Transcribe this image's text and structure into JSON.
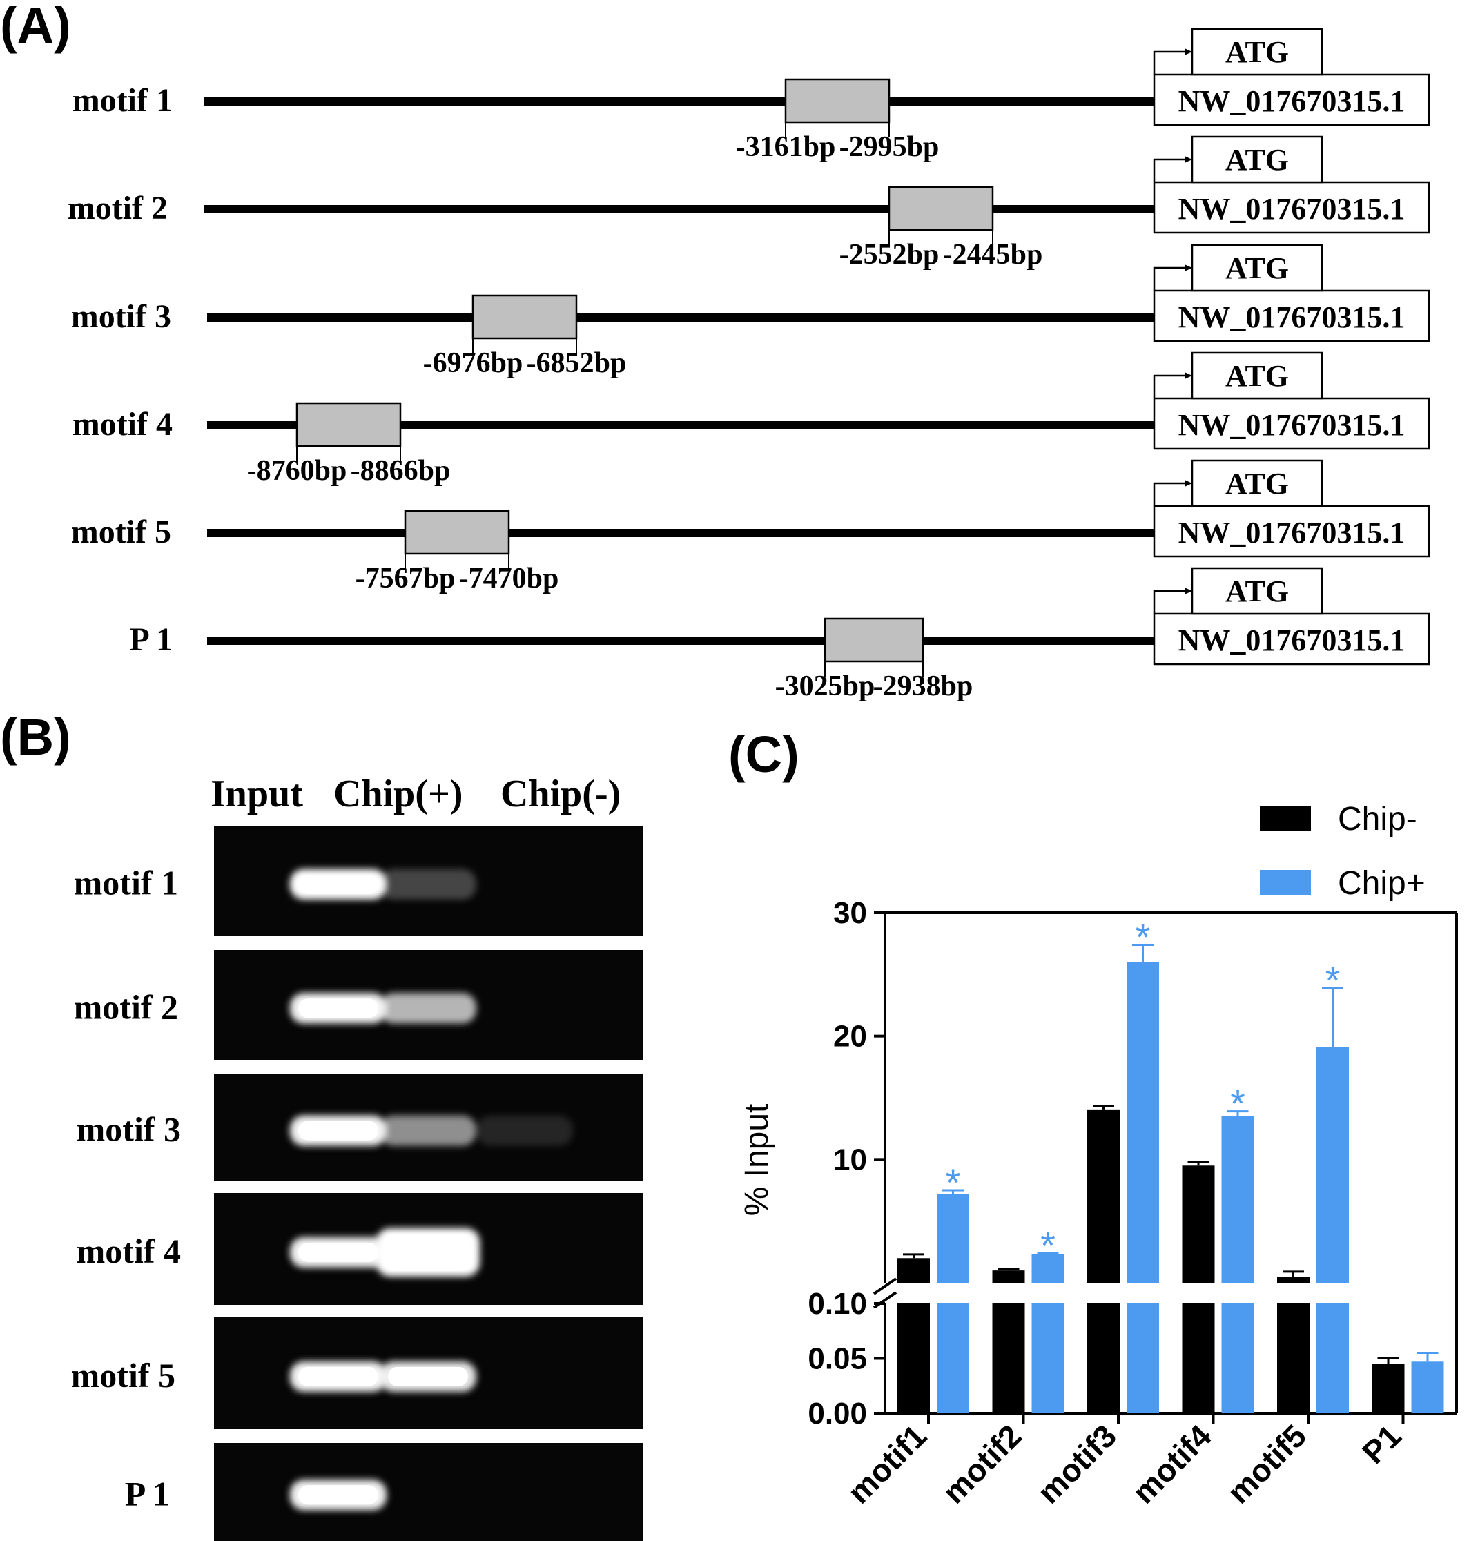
{
  "panel_labels": {
    "a": "(A)",
    "b": "(B)",
    "c": "(C)"
  },
  "panel_a": {
    "atg_label": "ATG",
    "gene_label": "NW_017670315.1",
    "rows": [
      {
        "name": "motif  1",
        "left_label": "-3161bp",
        "right_label": "-2995bp"
      },
      {
        "name": "motif  2",
        "left_label": "-2552bp",
        "right_label": "-2445bp"
      },
      {
        "name": "motif  3",
        "left_label": "-6976bp",
        "right_label": "-6852bp"
      },
      {
        "name": "motif  4",
        "left_label": "-8760bp",
        "right_label": "-8866bp"
      },
      {
        "name": "motif  5",
        "left_label": "-7567bp",
        "right_label": "-7470bp"
      },
      {
        "name": "P 1",
        "left_label": "-3025bp",
        "right_label": "-2938bp"
      }
    ]
  },
  "panel_b": {
    "lanes": [
      "Input",
      "Chip(+)",
      "Chip(-)"
    ],
    "rows": [
      "motif  1",
      "motif  2",
      "motif  3",
      "motif  4",
      "motif  5",
      "P 1"
    ],
    "band_intensity": [
      [
        1.0,
        0.25,
        0.0
      ],
      [
        0.95,
        0.7,
        0.0
      ],
      [
        0.95,
        0.55,
        0.12
      ],
      [
        0.95,
        1.0,
        0.0
      ],
      [
        0.95,
        0.9,
        0.0
      ],
      [
        0.95,
        0.0,
        0.0
      ]
    ],
    "colors": {
      "gel_bg": "#060606",
      "band": "#ffffff"
    }
  },
  "chart_data": {
    "type": "bar",
    "categories": [
      "motif1",
      "motif2",
      "motif3",
      "motif4",
      "motif5",
      "P1"
    ],
    "series": [
      {
        "name": "Chip-",
        "color": "#000000",
        "values": [
          2.0,
          1.0,
          14.0,
          9.5,
          0.5,
          0.045
        ],
        "errors": [
          0.3,
          0.1,
          0.3,
          0.3,
          0.4,
          0.005
        ],
        "significant": [
          false,
          false,
          false,
          false,
          false,
          false
        ]
      },
      {
        "name": "Chip+",
        "color": "#4c9bf0",
        "values": [
          7.2,
          2.3,
          26.0,
          13.5,
          19.1,
          0.047
        ],
        "errors": [
          0.3,
          0.1,
          1.4,
          0.4,
          4.8,
          0.008
        ],
        "significant": [
          true,
          true,
          true,
          true,
          true,
          false
        ]
      }
    ],
    "ylabel": "% Input",
    "segments": {
      "upper": {
        "ylim": [
          0,
          30
        ],
        "ticks": [
          10,
          20,
          30
        ]
      },
      "lower": {
        "ylim": [
          0,
          0.1
        ],
        "ticks": [
          0.0,
          0.05,
          0.1
        ]
      }
    },
    "tick_labels_upper": [
      "10",
      "20",
      "30"
    ],
    "tick_labels_lower": [
      "0.00",
      "0.05",
      "0.10"
    ],
    "significance_marker": "*",
    "legend_position": "top-right"
  }
}
